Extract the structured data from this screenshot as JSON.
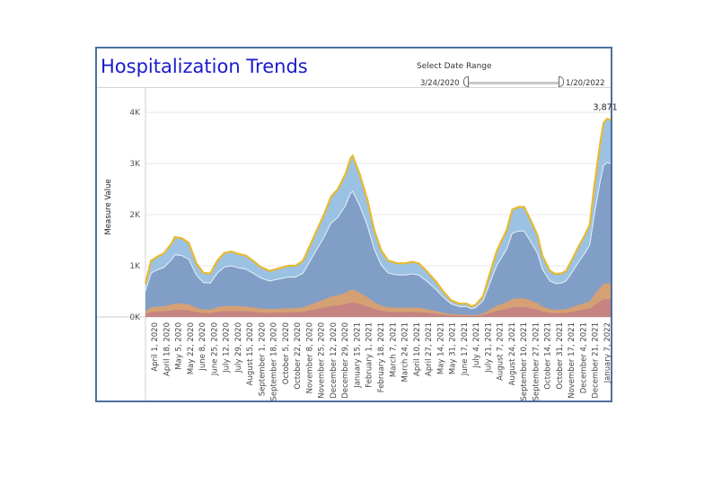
{
  "title": "Hospitalization Trends",
  "date_range": {
    "label": "Select Date Range",
    "start": "3/24/2020",
    "end": "1/20/2022"
  },
  "colors": {
    "total_line": "#e8b930",
    "series1": "#96bfe0",
    "series2": "#7f9cc4",
    "series3": "#d9a070",
    "series4": "#c48282",
    "gridline": "#e8e8e8"
  },
  "chart_data": {
    "type": "area",
    "ylabel": "Measure Value",
    "ylim": [
      0,
      4300
    ],
    "y_ticks": [
      {
        "value": 0,
        "label": "0K"
      },
      {
        "value": 1000,
        "label": "1K"
      },
      {
        "value": 2000,
        "label": "2K"
      },
      {
        "value": 3000,
        "label": "3K"
      },
      {
        "value": 4000,
        "label": "4K"
      }
    ],
    "x_tick_labels": [
      "April 1, 2020",
      "April 18, 2020",
      "May 5, 2020",
      "May 22, 2020",
      "June 8, 2020",
      "June 25, 2020",
      "July 12, 2020",
      "July 29, 2020",
      "August 15, 2020",
      "September 1, 2020",
      "September 18, 2020",
      "October 5, 2020",
      "October 22, 2020",
      "November 8, 2020",
      "November 25, 2020",
      "December 12, 2020",
      "December 29, 2020",
      "January 15, 2021",
      "February 1, 2021",
      "February 18, 2021",
      "March 7, 2021",
      "March 24, 2021",
      "April 10, 2021",
      "April 27, 2021",
      "May 14, 2021",
      "May 31, 2021",
      "June 17, 2021",
      "July 4, 2021",
      "July 21, 2021",
      "August 7, 2021",
      "August 24, 2021",
      "September 10, 2021",
      "September 27, 2021",
      "October 14, 2021",
      "October 31, 2021",
      "November 17, 2021",
      "December 4, 2021",
      "December 21, 2021",
      "January 7, 2022"
    ],
    "annotation": "3,871",
    "total_series": [
      [
        "2020-03-24",
        650
      ],
      [
        "2020-04-01",
        1100
      ],
      [
        "2020-04-10",
        1180
      ],
      [
        "2020-04-20",
        1250
      ],
      [
        "2020-05-01",
        1450
      ],
      [
        "2020-05-05",
        1560
      ],
      [
        "2020-05-15",
        1540
      ],
      [
        "2020-05-25",
        1450
      ],
      [
        "2020-06-05",
        1050
      ],
      [
        "2020-06-15",
        860
      ],
      [
        "2020-06-25",
        850
      ],
      [
        "2020-07-05",
        1100
      ],
      [
        "2020-07-15",
        1250
      ],
      [
        "2020-07-25",
        1280
      ],
      [
        "2020-08-05",
        1230
      ],
      [
        "2020-08-15",
        1200
      ],
      [
        "2020-08-25",
        1100
      ],
      [
        "2020-09-05",
        980
      ],
      [
        "2020-09-18",
        900
      ],
      [
        "2020-10-01",
        950
      ],
      [
        "2020-10-15",
        1000
      ],
      [
        "2020-10-25",
        1000
      ],
      [
        "2020-11-05",
        1100
      ],
      [
        "2020-11-15",
        1400
      ],
      [
        "2020-11-25",
        1700
      ],
      [
        "2020-12-05",
        2000
      ],
      [
        "2020-12-15",
        2350
      ],
      [
        "2020-12-25",
        2500
      ],
      [
        "2021-01-05",
        2800
      ],
      [
        "2021-01-12",
        3100
      ],
      [
        "2021-01-15",
        3150
      ],
      [
        "2021-01-25",
        2800
      ],
      [
        "2021-02-05",
        2300
      ],
      [
        "2021-02-15",
        1700
      ],
      [
        "2021-02-25",
        1300
      ],
      [
        "2021-03-07",
        1100
      ],
      [
        "2021-03-20",
        1050
      ],
      [
        "2021-04-01",
        1050
      ],
      [
        "2021-04-10",
        1080
      ],
      [
        "2021-04-20",
        1050
      ],
      [
        "2021-05-01",
        900
      ],
      [
        "2021-05-14",
        700
      ],
      [
        "2021-05-25",
        500
      ],
      [
        "2021-06-05",
        330
      ],
      [
        "2021-06-17",
        260
      ],
      [
        "2021-06-28",
        260
      ],
      [
        "2021-07-04",
        210
      ],
      [
        "2021-07-10",
        230
      ],
      [
        "2021-07-21",
        400
      ],
      [
        "2021-08-01",
        900
      ],
      [
        "2021-08-10",
        1300
      ],
      [
        "2021-08-24",
        1700
      ],
      [
        "2021-09-01",
        2100
      ],
      [
        "2021-09-10",
        2150
      ],
      [
        "2021-09-18",
        2150
      ],
      [
        "2021-09-27",
        1900
      ],
      [
        "2021-10-07",
        1600
      ],
      [
        "2021-10-14",
        1200
      ],
      [
        "2021-10-25",
        900
      ],
      [
        "2021-11-02",
        840
      ],
      [
        "2021-11-10",
        850
      ],
      [
        "2021-11-17",
        900
      ],
      [
        "2021-11-25",
        1100
      ],
      [
        "2021-12-04",
        1350
      ],
      [
        "2021-12-14",
        1600
      ],
      [
        "2021-12-21",
        1800
      ],
      [
        "2021-12-28",
        2600
      ],
      [
        "2022-01-05",
        3400
      ],
      [
        "2022-01-10",
        3800
      ],
      [
        "2022-01-15",
        3871
      ],
      [
        "2022-01-20",
        3850
      ]
    ],
    "series_fractions": [
      {
        "color_key": "series1",
        "fraction": 1.0
      },
      {
        "color_key": "series2",
        "fraction": 0.78
      },
      {
        "color_key": "series3",
        "fraction": 0.17
      },
      {
        "color_key": "series4",
        "fraction": 0.09
      }
    ],
    "grid": true
  }
}
